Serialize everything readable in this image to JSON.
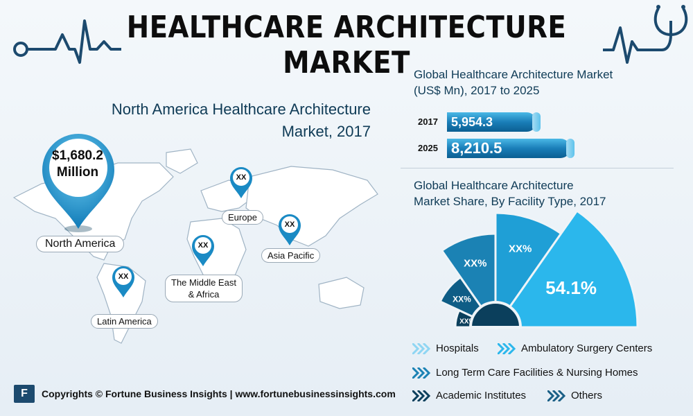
{
  "header": {
    "title": "HEALTHCARE ARCHITECTURE MARKET"
  },
  "north_america": {
    "title_line1": "North America Healthcare Architecture",
    "title_line2": "Market, 2017",
    "value_line1": "$1,680.2",
    "value_line2": "Million"
  },
  "map": {
    "regions": [
      {
        "label": "North America",
        "value": "$1,680.2 Million"
      },
      {
        "label": "Europe",
        "value": "XX"
      },
      {
        "label": "Asia Pacific",
        "value": "XX"
      },
      {
        "label": "The Middle East & Africa",
        "label_line1": "The Middle East",
        "label_line2": "& Africa",
        "value": "XX"
      },
      {
        "label": "Latin America",
        "value": "XX"
      }
    ]
  },
  "chart_data": [
    {
      "type": "bar",
      "title": "Global Healthcare Architecture Market (US$ Mn), 2017 to 2025",
      "title_line1": "Global Healthcare Architecture Market",
      "title_line2": "(US$ Mn), 2017 to 2025",
      "categories": [
        "2017",
        "2025"
      ],
      "values": [
        5954.3,
        8210.5
      ],
      "value_labels": [
        "5,954.3",
        "8,210.5"
      ],
      "orientation": "horizontal"
    },
    {
      "type": "pie",
      "title": "Global Healthcare Architecture Market Share, By Facility Type, 2017",
      "title_line1": "Global Healthcare Architecture",
      "title_line2": "Market Share, By Facility Type, 2017",
      "categories": [
        "Hospitals",
        "Ambulatory Surgery Centers",
        "Long Term Care Facilities & Nursing Homes",
        "Academic Institutes",
        "Others"
      ],
      "value_labels": [
        "54.1%",
        "XX%",
        "XX%",
        "XX%",
        "XX%"
      ],
      "values": [
        54.1,
        null,
        null,
        null,
        null
      ],
      "colors": [
        "#2bb7ec",
        "#1f9fd6",
        "#1b82b4",
        "#0e5d86",
        "#0b3f5c"
      ]
    }
  ],
  "footer": {
    "logo": "F",
    "text": "Copyrights © Fortune Business Insights | www.fortunebusinessinsights.com"
  },
  "colors": {
    "accent": "#1a7eb8",
    "dark": "#0f3b56"
  }
}
